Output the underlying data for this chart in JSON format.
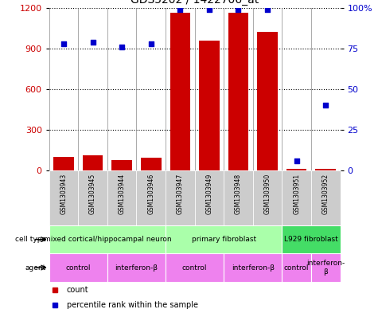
{
  "title": "GDS5202 / 1422706_at",
  "samples": [
    "GSM1303943",
    "GSM1303945",
    "GSM1303944",
    "GSM1303946",
    "GSM1303947",
    "GSM1303949",
    "GSM1303948",
    "GSM1303950",
    "GSM1303951",
    "GSM1303952"
  ],
  "counts": [
    100,
    110,
    80,
    95,
    1165,
    960,
    1165,
    1020,
    15,
    15
  ],
  "percentiles": [
    78,
    79,
    76,
    78,
    99,
    99,
    99,
    99,
    6,
    40
  ],
  "ylim_left": [
    0,
    1200
  ],
  "ylim_right": [
    0,
    100
  ],
  "yticks_left": [
    0,
    300,
    600,
    900,
    1200
  ],
  "yticks_right": [
    0,
    25,
    50,
    75,
    100
  ],
  "cell_types": [
    {
      "label": "mixed cortical/hippocampal neuron",
      "start": 0,
      "end": 4,
      "color": "#AAFFAA"
    },
    {
      "label": "primary fibroblast",
      "start": 4,
      "end": 8,
      "color": "#AAFFAA"
    },
    {
      "label": "L929 fibroblast",
      "start": 8,
      "end": 10,
      "color": "#44DD66"
    }
  ],
  "agents": [
    {
      "label": "control",
      "start": 0,
      "end": 2
    },
    {
      "label": "interferon-β",
      "start": 2,
      "end": 4
    },
    {
      "label": "control",
      "start": 4,
      "end": 6
    },
    {
      "label": "interferon-β",
      "start": 6,
      "end": 8
    },
    {
      "label": "control",
      "start": 8,
      "end": 9
    },
    {
      "label": "interferon-\nβ",
      "start": 9,
      "end": 10
    }
  ],
  "bar_color": "#CC0000",
  "dot_color": "#0000CC",
  "tick_color_left": "#CC0000",
  "tick_color_right": "#0000CC",
  "sample_box_color": "#CCCCCC",
  "agent_color": "#EE82EE",
  "cell_type_label_fontsize": 6.5,
  "agent_label_fontsize": 6.5,
  "sample_label_fontsize": 5.5,
  "title_fontsize": 10,
  "axis_tick_fontsize": 8,
  "legend_fontsize": 7
}
